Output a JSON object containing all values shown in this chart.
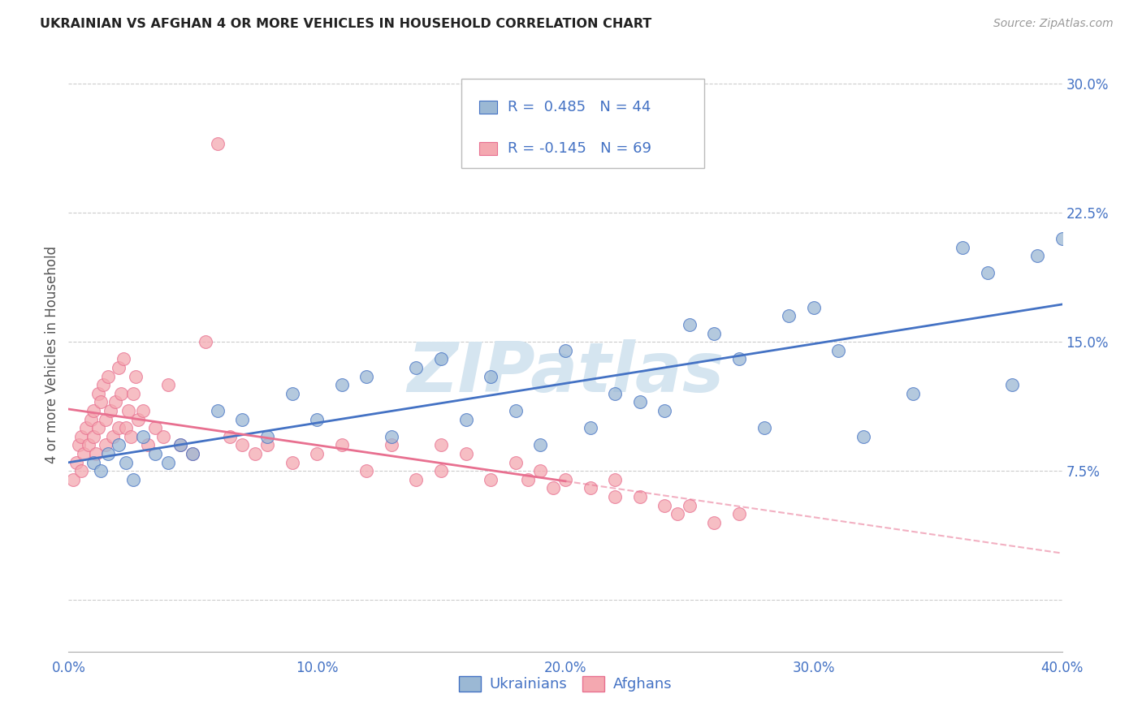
{
  "title": "UKRAINIAN VS AFGHAN 4 OR MORE VEHICLES IN HOUSEHOLD CORRELATION CHART",
  "source": "Source: ZipAtlas.com",
  "ylabel": "4 or more Vehicles in Household",
  "xlim": [
    0.0,
    40.0
  ],
  "ylim": [
    -3.0,
    31.5
  ],
  "xticks": [
    0.0,
    10.0,
    20.0,
    30.0,
    40.0
  ],
  "xticklabels": [
    "0.0%",
    "10.0%",
    "20.0%",
    "30.0%",
    "40.0%"
  ],
  "yticks_right": [
    0.0,
    7.5,
    15.0,
    22.5,
    30.0
  ],
  "yticklabels_right": [
    "",
    "7.5%",
    "15.0%",
    "22.5%",
    "30.0%"
  ],
  "legend_blue_r": "R =  0.485",
  "legend_blue_n": "N = 44",
  "legend_pink_r": "R = -0.145",
  "legend_pink_n": "N = 69",
  "blue_color": "#9BB8D4",
  "pink_color": "#F4A8B0",
  "trend_blue_color": "#4472C4",
  "trend_pink_color": "#E87090",
  "watermark": "ZIPatlas",
  "watermark_color": "#D5E5F0",
  "axis_color": "#4472C4",
  "grid_color": "#CCCCCC",
  "background_color": "#FFFFFF",
  "ukrainians_x": [
    1.0,
    1.3,
    1.6,
    2.0,
    2.3,
    2.6,
    3.0,
    3.5,
    4.0,
    4.5,
    5.0,
    6.0,
    7.0,
    8.0,
    9.0,
    10.0,
    11.0,
    12.0,
    13.0,
    14.0,
    15.0,
    16.0,
    17.0,
    18.0,
    19.0,
    20.0,
    21.0,
    22.0,
    23.0,
    24.0,
    25.0,
    26.0,
    27.0,
    28.0,
    29.0,
    30.0,
    31.0,
    32.0,
    34.0,
    36.0,
    37.0,
    38.0,
    39.0,
    40.0
  ],
  "ukrainians_y": [
    8.0,
    7.5,
    8.5,
    9.0,
    8.0,
    7.0,
    9.5,
    8.5,
    8.0,
    9.0,
    8.5,
    11.0,
    10.5,
    9.5,
    12.0,
    10.5,
    12.5,
    13.0,
    9.5,
    13.5,
    14.0,
    10.5,
    13.0,
    11.0,
    9.0,
    14.5,
    10.0,
    12.0,
    11.5,
    11.0,
    16.0,
    15.5,
    14.0,
    10.0,
    16.5,
    17.0,
    14.5,
    9.5,
    12.0,
    20.5,
    19.0,
    12.5,
    20.0,
    21.0
  ],
  "afghans_x": [
    0.2,
    0.3,
    0.4,
    0.5,
    0.5,
    0.6,
    0.7,
    0.8,
    0.9,
    1.0,
    1.0,
    1.1,
    1.2,
    1.2,
    1.3,
    1.4,
    1.5,
    1.5,
    1.6,
    1.7,
    1.8,
    1.9,
    2.0,
    2.0,
    2.1,
    2.2,
    2.3,
    2.4,
    2.5,
    2.6,
    2.7,
    2.8,
    3.0,
    3.2,
    3.5,
    3.8,
    4.0,
    4.5,
    5.0,
    5.5,
    6.0,
    6.5,
    7.0,
    7.5,
    8.0,
    9.0,
    10.0,
    11.0,
    12.0,
    13.0,
    14.0,
    15.0,
    15.0,
    16.0,
    17.0,
    18.0,
    18.5,
    19.0,
    19.5,
    20.0,
    21.0,
    22.0,
    22.0,
    23.0,
    24.0,
    24.5,
    25.0,
    26.0,
    27.0
  ],
  "afghans_y": [
    7.0,
    8.0,
    9.0,
    7.5,
    9.5,
    8.5,
    10.0,
    9.0,
    10.5,
    9.5,
    11.0,
    8.5,
    10.0,
    12.0,
    11.5,
    12.5,
    9.0,
    10.5,
    13.0,
    11.0,
    9.5,
    11.5,
    10.0,
    13.5,
    12.0,
    14.0,
    10.0,
    11.0,
    9.5,
    12.0,
    13.0,
    10.5,
    11.0,
    9.0,
    10.0,
    9.5,
    12.5,
    9.0,
    8.5,
    15.0,
    26.5,
    9.5,
    9.0,
    8.5,
    9.0,
    8.0,
    8.5,
    9.0,
    7.5,
    9.0,
    7.0,
    9.0,
    7.5,
    8.5,
    7.0,
    8.0,
    7.0,
    7.5,
    6.5,
    7.0,
    6.5,
    7.0,
    6.0,
    6.0,
    5.5,
    5.0,
    5.5,
    4.5,
    5.0
  ],
  "title_fontsize": 11.5,
  "source_fontsize": 10,
  "tick_fontsize": 12,
  "ylabel_fontsize": 12,
  "legend_fontsize": 13
}
